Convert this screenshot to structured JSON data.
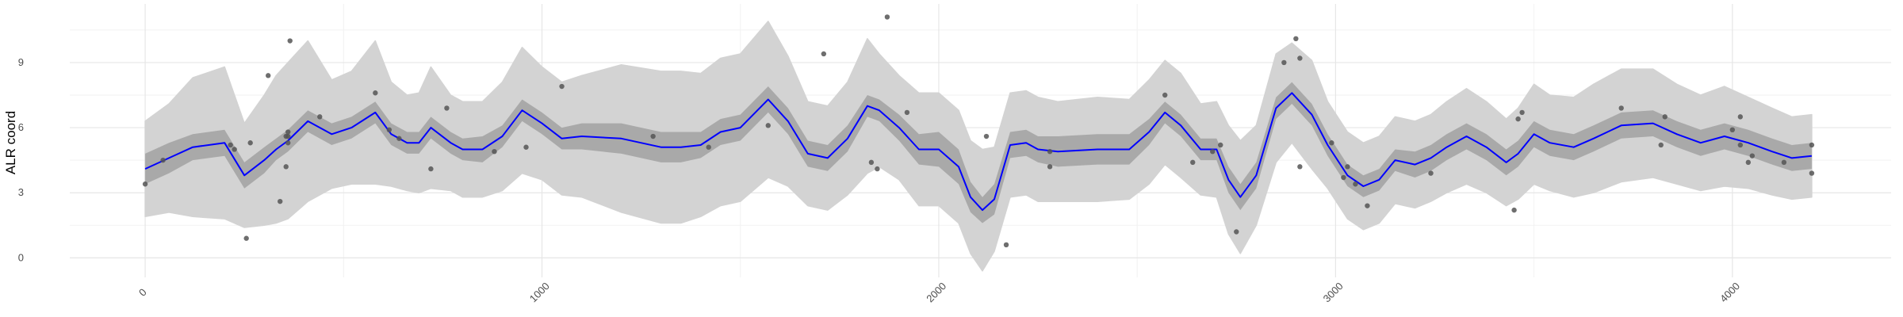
{
  "chart_data": {
    "type": "line",
    "title": "",
    "xlabel": "",
    "ylabel": "ALR coord",
    "xlim": [
      -190,
      4400
    ],
    "ylim": [
      -0.9,
      11.7
    ],
    "x_ticks": [
      0,
      1000,
      2000,
      3000,
      4000
    ],
    "x_tick_labels": [
      "0",
      "1000",
      "2000",
      "3000",
      "4000"
    ],
    "y_ticks": [
      0,
      3,
      6,
      9
    ],
    "y_tick_labels": [
      "0",
      "3",
      "6",
      "9"
    ],
    "grid": true,
    "x_tick_label_rotation_deg": -45,
    "colors": {
      "mean_line": "#0000ff",
      "inner_band": "#a9a9a9",
      "outer_band": "#d3d3d3",
      "points": "#555555",
      "grid_major": "#e6e6e6",
      "grid_minor": "#f2f2f2"
    },
    "mean": {
      "x": [
        0,
        60,
        120,
        200,
        250,
        300,
        330,
        360,
        410,
        470,
        520,
        580,
        620,
        660,
        690,
        720,
        770,
        800,
        850,
        900,
        950,
        1000,
        1050,
        1100,
        1200,
        1300,
        1350,
        1400,
        1450,
        1500,
        1570,
        1620,
        1670,
        1720,
        1770,
        1820,
        1850,
        1900,
        1950,
        2000,
        2050,
        2080,
        2110,
        2140,
        2180,
        2220,
        2250,
        2300,
        2400,
        2480,
        2530,
        2570,
        2610,
        2660,
        2700,
        2730,
        2760,
        2800,
        2850,
        2890,
        2940,
        2980,
        3030,
        3070,
        3110,
        3150,
        3200,
        3240,
        3280,
        3330,
        3380,
        3430,
        3460,
        3500,
        3540,
        3600,
        3650,
        3720,
        3800,
        3860,
        3920,
        3980,
        4040,
        4100,
        4150,
        4200
      ],
      "y": [
        4.1,
        4.6,
        5.1,
        5.3,
        3.8,
        4.5,
        5.0,
        5.4,
        6.3,
        5.7,
        6.0,
        6.7,
        5.7,
        5.3,
        5.3,
        6.0,
        5.3,
        5.0,
        5.0,
        5.6,
        6.8,
        6.2,
        5.5,
        5.6,
        5.5,
        5.1,
        5.1,
        5.2,
        5.8,
        6.0,
        7.3,
        6.3,
        4.8,
        4.6,
        5.5,
        7.0,
        6.8,
        6.0,
        5.0,
        5.0,
        4.2,
        2.8,
        2.2,
        2.7,
        5.2,
        5.3,
        5.0,
        4.9,
        5.0,
        5.0,
        5.8,
        6.7,
        6.1,
        5.0,
        5.0,
        3.6,
        2.8,
        3.8,
        6.9,
        7.6,
        6.6,
        5.2,
        3.8,
        3.3,
        3.6,
        4.5,
        4.3,
        4.6,
        5.1,
        5.6,
        5.1,
        4.4,
        4.8,
        5.7,
        5.3,
        5.1,
        5.5,
        6.1,
        6.2,
        5.7,
        5.3,
        5.6,
        5.3,
        4.9,
        4.6,
        4.7
      ],
      "inner_halfwidth": [
        0.7,
        0.7,
        0.6,
        0.6,
        0.6,
        0.6,
        0.5,
        0.5,
        0.5,
        0.5,
        0.5,
        0.5,
        0.5,
        0.5,
        0.5,
        0.5,
        0.5,
        0.5,
        0.6,
        0.5,
        0.5,
        0.5,
        0.5,
        0.6,
        0.7,
        0.7,
        0.7,
        0.6,
        0.6,
        0.6,
        0.6,
        0.6,
        0.6,
        0.6,
        0.6,
        0.5,
        0.5,
        0.6,
        0.7,
        0.8,
        0.8,
        0.7,
        0.6,
        0.7,
        0.6,
        0.6,
        0.6,
        0.7,
        0.7,
        0.7,
        0.6,
        0.5,
        0.5,
        0.5,
        0.5,
        0.6,
        0.6,
        0.6,
        0.5,
        0.5,
        0.5,
        0.5,
        0.5,
        0.5,
        0.5,
        0.5,
        0.6,
        0.6,
        0.6,
        0.6,
        0.6,
        0.6,
        0.6,
        0.6,
        0.6,
        0.6,
        0.6,
        0.6,
        0.6,
        0.6,
        0.6,
        0.6,
        0.6,
        0.6,
        0.6,
        0.6
      ],
      "outer_halfwidth": [
        2.2,
        2.5,
        3.2,
        3.5,
        2.4,
        3.0,
        3.4,
        3.6,
        3.7,
        2.5,
        2.6,
        3.3,
        2.4,
        2.2,
        2.3,
        2.8,
        2.2,
        2.2,
        2.2,
        2.5,
        2.9,
        2.6,
        2.6,
        2.8,
        3.4,
        3.5,
        3.5,
        3.3,
        3.4,
        3.4,
        3.6,
        3.0,
        2.4,
        2.4,
        2.6,
        3.1,
        2.6,
        2.4,
        2.6,
        2.6,
        2.6,
        2.6,
        2.8,
        2.4,
        2.4,
        2.4,
        2.4,
        2.3,
        2.4,
        2.3,
        2.4,
        2.4,
        2.4,
        2.1,
        2.2,
        2.5,
        2.6,
        2.3,
        2.5,
        2.3,
        2.5,
        2.0,
        2.0,
        2.0,
        2.0,
        2.0,
        2.0,
        2.0,
        2.1,
        2.2,
        2.1,
        2.0,
        2.1,
        2.3,
        2.2,
        2.3,
        2.5,
        2.6,
        2.5,
        2.3,
        2.2,
        2.3,
        2.1,
        2.0,
        1.9,
        1.9
      ]
    },
    "points": {
      "x": [
        0,
        45,
        215,
        225,
        255,
        265,
        310,
        340,
        355,
        360,
        355,
        360,
        360,
        365,
        440,
        580,
        615,
        640,
        720,
        760,
        880,
        960,
        1050,
        1280,
        1420,
        1570,
        1710,
        1830,
        1845,
        1870,
        1920,
        2120,
        2170,
        2280,
        2280,
        2570,
        2640,
        2690,
        2710,
        2750,
        2870,
        2900,
        2910,
        2910,
        2990,
        3020,
        3030,
        3050,
        3080,
        3240,
        3450,
        3460,
        3470,
        3720,
        3820,
        3830,
        4000,
        4020,
        4020,
        4040,
        4050,
        4130,
        4200,
        4200
      ],
      "y": [
        3.4,
        4.5,
        5.2,
        5.0,
        0.9,
        5.3,
        8.4,
        2.6,
        4.2,
        5.3,
        5.6,
        5.6,
        5.8,
        10.0,
        6.5,
        7.6,
        5.9,
        5.5,
        4.1,
        6.9,
        4.9,
        5.1,
        7.9,
        5.6,
        5.1,
        6.1,
        9.4,
        4.4,
        4.1,
        11.1,
        6.7,
        5.6,
        0.6,
        4.2,
        4.9,
        7.5,
        4.4,
        4.9,
        5.2,
        1.2,
        9.0,
        10.1,
        9.2,
        4.2,
        5.3,
        3.7,
        4.2,
        3.4,
        2.4,
        3.9,
        2.2,
        6.4,
        6.7,
        6.9,
        5.2,
        6.5,
        5.9,
        5.2,
        6.5,
        4.4,
        4.7,
        4.4,
        3.9,
        5.2
      ]
    }
  }
}
